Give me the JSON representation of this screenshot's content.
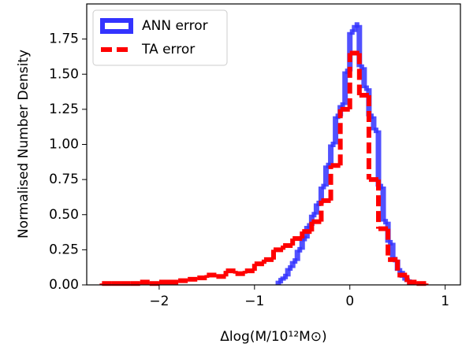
{
  "chart_data": {
    "type": "histogram",
    "xlabel": "Δlog(M/10¹²M⊙)",
    "ylabel": "Normalised Number Density",
    "xlim": [
      -2.76,
      1.16
    ],
    "ylim": [
      0,
      2.0
    ],
    "xticks": [
      {
        "value": -2,
        "label": "−2"
      },
      {
        "value": -1,
        "label": "−1"
      },
      0,
      1
    ],
    "yticks": [
      {
        "value": 0,
        "label": "0.00"
      },
      {
        "value": 0.25,
        "label": "0.25"
      },
      {
        "value": 0.5,
        "label": "0.50"
      },
      {
        "value": 0.75,
        "label": "0.75"
      },
      {
        "value": 1.0,
        "label": "1.00"
      },
      {
        "value": 1.25,
        "label": "1.25"
      },
      {
        "value": 1.5,
        "label": "1.50"
      },
      {
        "value": 1.75,
        "label": "1.75"
      }
    ],
    "legend": "upper left",
    "series": [
      {
        "name": "ANN error",
        "color": "#3333ff",
        "style": "solid",
        "bins": [
          -0.75,
          -0.7,
          -0.65,
          -0.6,
          -0.55,
          -0.5,
          -0.45,
          -0.4,
          -0.35,
          -0.3,
          -0.25,
          -0.2,
          -0.15,
          -0.1,
          -0.05,
          0.0,
          0.05,
          0.1,
          0.15,
          0.2,
          0.25,
          0.3,
          0.35,
          0.4,
          0.45,
          0.5,
          0.55,
          0.6,
          0.65
        ],
        "values": [
          0.03,
          0.06,
          0.12,
          0.17,
          0.25,
          0.33,
          0.42,
          0.5,
          0.58,
          0.7,
          0.85,
          1.0,
          1.2,
          1.28,
          1.52,
          1.8,
          1.85,
          1.55,
          1.4,
          1.2,
          1.1,
          0.7,
          0.45,
          0.3,
          0.18,
          0.1,
          0.05,
          0.02
        ]
      },
      {
        "name": "TA error",
        "color": "#ff0000",
        "style": "dashed",
        "bins": [
          -2.6,
          -2.5,
          -2.4,
          -2.3,
          -2.2,
          -2.1,
          -2.0,
          -1.9,
          -1.8,
          -1.7,
          -1.6,
          -1.5,
          -1.4,
          -1.3,
          -1.2,
          -1.1,
          -1.0,
          -0.9,
          -0.8,
          -0.7,
          -0.6,
          -0.5,
          -0.4,
          -0.3,
          -0.2,
          -0.1,
          0.0,
          0.1,
          0.2,
          0.3,
          0.4,
          0.5,
          0.6,
          0.7,
          0.8
        ],
        "values": [
          0.01,
          0.01,
          0.01,
          0.01,
          0.02,
          0.01,
          0.02,
          0.02,
          0.03,
          0.04,
          0.05,
          0.07,
          0.06,
          0.1,
          0.08,
          0.1,
          0.15,
          0.18,
          0.25,
          0.28,
          0.33,
          0.38,
          0.45,
          0.6,
          0.85,
          1.25,
          1.65,
          1.35,
          0.75,
          0.4,
          0.18,
          0.07,
          0.02,
          0.01
        ]
      }
    ]
  }
}
